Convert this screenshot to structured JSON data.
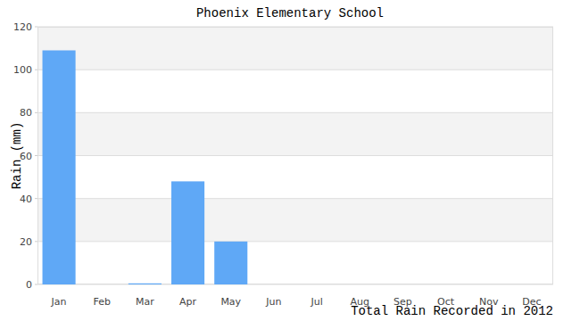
{
  "chart_data": {
    "type": "bar",
    "title": "Phoenix Elementary School",
    "xlabel": "Total Rain Recorded in 2012",
    "ylabel": "Rain (mm)",
    "categories": [
      "Jan",
      "Feb",
      "Mar",
      "Apr",
      "May",
      "Jun",
      "Jul",
      "Aug",
      "Sep",
      "Oct",
      "Nov",
      "Dec"
    ],
    "values": [
      109,
      0,
      0.5,
      48,
      20,
      0,
      0,
      0,
      0,
      0,
      0,
      0
    ],
    "color": "#5fa8f6",
    "ylim": [
      0,
      120
    ],
    "yticks": [
      0,
      20,
      40,
      60,
      80,
      100,
      120
    ],
    "grid": true
  }
}
